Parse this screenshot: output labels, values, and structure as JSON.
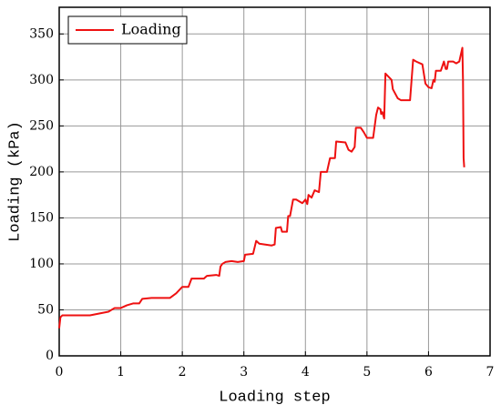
{
  "chart_data": {
    "type": "line",
    "x_label": "Loading step",
    "y_label": "Loading (kPa)",
    "x": [
      0,
      0.02,
      0.05,
      0.5,
      0.8,
      0.9,
      1.0,
      1.1,
      1.2,
      1.3,
      1.35,
      1.5,
      1.7,
      1.8,
      1.9,
      2.0,
      2.1,
      2.15,
      2.35,
      2.4,
      2.55,
      2.6,
      2.62,
      2.65,
      2.7,
      2.8,
      2.9,
      3.0,
      3.02,
      3.15,
      3.2,
      3.25,
      3.45,
      3.5,
      3.52,
      3.6,
      3.62,
      3.7,
      3.72,
      3.75,
      3.8,
      3.85,
      3.95,
      4.0,
      4.03,
      4.05,
      4.1,
      4.15,
      4.22,
      4.25,
      4.35,
      4.4,
      4.48,
      4.5,
      4.65,
      4.7,
      4.75,
      4.8,
      4.82,
      4.9,
      4.95,
      5.0,
      5.1,
      5.15,
      5.18,
      5.22,
      5.23,
      5.25,
      5.28,
      5.3,
      5.4,
      5.42,
      5.5,
      5.55,
      5.7,
      5.75,
      5.8,
      5.9,
      5.95,
      6.0,
      6.05,
      6.08,
      6.1,
      6.12,
      6.2,
      6.25,
      6.28,
      6.3,
      6.32,
      6.4,
      6.45,
      6.5,
      6.55,
      6.56,
      6.57,
      6.58
    ],
    "series": [
      {
        "name": "Loading",
        "color": "#ee1111",
        "values": [
          30,
          42,
          44,
          44,
          48,
          52,
          52,
          55,
          57,
          57,
          62,
          63,
          63,
          63,
          68,
          75,
          75,
          84,
          84,
          87,
          88,
          87,
          97,
          100,
          102,
          103,
          102,
          103,
          110,
          111,
          125,
          122,
          120,
          121,
          139,
          140,
          135,
          135,
          152,
          152,
          170,
          170,
          166,
          170,
          165,
          175,
          172,
          180,
          178,
          200,
          200,
          215,
          215,
          233,
          232,
          224,
          222,
          227,
          248,
          248,
          243,
          237,
          237,
          262,
          270,
          268,
          263,
          265,
          258,
          307,
          300,
          290,
          280,
          278,
          278,
          322,
          320,
          317,
          296,
          292,
          291,
          300,
          298,
          310,
          310,
          320,
          312,
          312,
          320,
          320,
          318,
          320,
          335,
          300,
          215,
          205
        ]
      }
    ],
    "xlim": [
      0,
      7
    ],
    "xticks": [
      0,
      1,
      2,
      3,
      4,
      5,
      6,
      7
    ],
    "ylim": [
      0,
      379
    ],
    "yticks": [
      0,
      50,
      100,
      150,
      200,
      250,
      300,
      350
    ],
    "grid": true,
    "legend": "upper-left"
  }
}
